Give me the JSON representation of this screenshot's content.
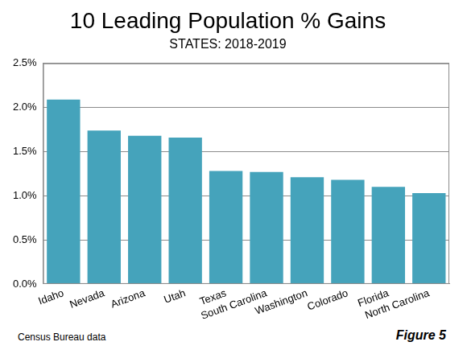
{
  "chart_data": {
    "type": "bar",
    "title": "10 Leading Population % Gains",
    "subtitle": "STATES: 2018-2019",
    "categories": [
      "Idaho",
      "Nevada",
      "Arizona",
      "Utah",
      "Texas",
      "South Carolina",
      "Washington",
      "Colorado",
      "Florida",
      "North Carolina"
    ],
    "values": [
      2.09,
      1.74,
      1.68,
      1.66,
      1.28,
      1.27,
      1.21,
      1.18,
      1.1,
      1.03
    ],
    "color": "#45a3bb",
    "ylim": [
      0,
      2.5
    ],
    "yticks": [
      {
        "value": 0,
        "label": "0.0%"
      },
      {
        "value": 0.5,
        "label": "0.5%"
      },
      {
        "value": 1,
        "label": "1.0%"
      },
      {
        "value": 1.5,
        "label": "1.5%"
      },
      {
        "value": 2,
        "label": "2.0%"
      },
      {
        "value": 2.5,
        "label": "2.5%"
      }
    ],
    "grid": true,
    "annotations": [
      "Census Bureau data",
      "Figure 5"
    ]
  }
}
